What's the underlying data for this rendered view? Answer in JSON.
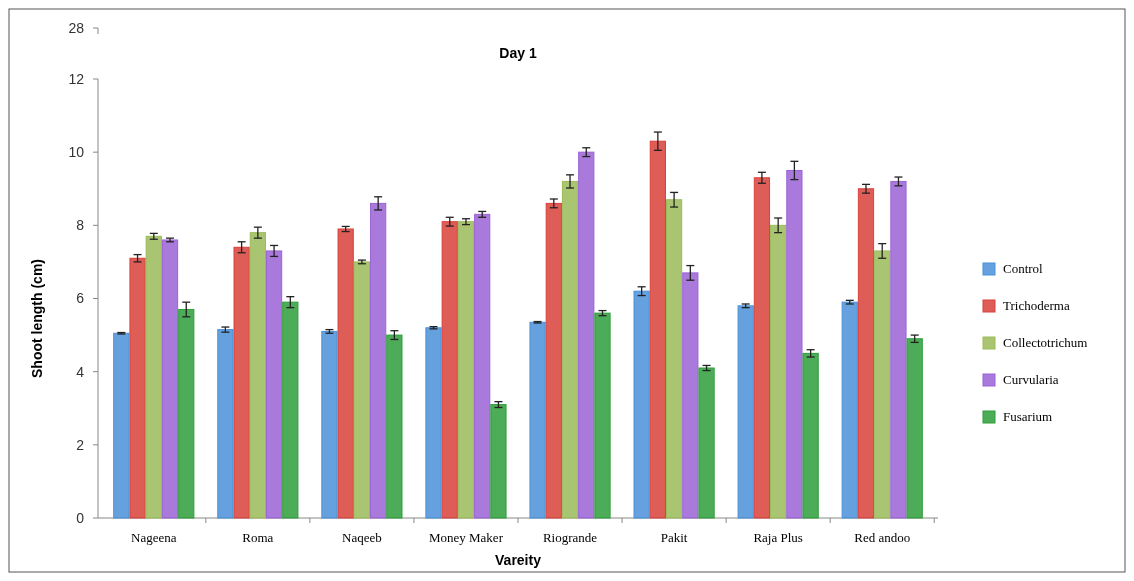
{
  "chart_data": {
    "type": "bar",
    "title": "Day 1",
    "xlabel": "Vareity",
    "ylabel": "Shoot length (cm)",
    "categories": [
      "Nageena",
      "Roma",
      "Naqeeb",
      "Money Maker",
      "Riogrande",
      "Pakit",
      "Raja Plus",
      "Red andoo"
    ],
    "ylim": [
      0,
      12
    ],
    "yticks": [
      0,
      2,
      4,
      6,
      8,
      10,
      12
    ],
    "annotations": [
      "28"
    ],
    "grid": false,
    "legend": "right",
    "series": [
      {
        "name": "Control",
        "color": "#4a90d9",
        "values": [
          5.05,
          5.15,
          5.1,
          5.2,
          5.35,
          6.2,
          5.8,
          5.9
        ],
        "errors": [
          0.02,
          0.07,
          0.05,
          0.03,
          0.02,
          0.12,
          0.05,
          0.05
        ]
      },
      {
        "name": "Trichoderma",
        "color": "#d9413a",
        "values": [
          7.1,
          7.4,
          7.9,
          8.1,
          8.6,
          10.3,
          9.3,
          9.0
        ],
        "errors": [
          0.1,
          0.15,
          0.07,
          0.12,
          0.12,
          0.25,
          0.15,
          0.12
        ]
      },
      {
        "name": "Collectotrichum",
        "color": "#9bbb59",
        "values": [
          7.7,
          7.8,
          7.0,
          8.1,
          9.2,
          8.7,
          8.0,
          7.3
        ],
        "errors": [
          0.08,
          0.15,
          0.05,
          0.08,
          0.18,
          0.2,
          0.2,
          0.2
        ]
      },
      {
        "name": "Curvularia",
        "color": "#9a63d6",
        "values": [
          7.6,
          7.3,
          8.6,
          8.3,
          10.0,
          6.7,
          9.5,
          9.2
        ],
        "errors": [
          0.05,
          0.15,
          0.18,
          0.08,
          0.12,
          0.2,
          0.25,
          0.12
        ]
      },
      {
        "name": "Fusarium",
        "color": "#2e9e3a",
        "values": [
          5.7,
          5.9,
          5.0,
          3.1,
          5.6,
          4.1,
          4.5,
          4.9
        ],
        "errors": [
          0.2,
          0.15,
          0.12,
          0.08,
          0.07,
          0.07,
          0.1,
          0.1
        ]
      }
    ]
  }
}
